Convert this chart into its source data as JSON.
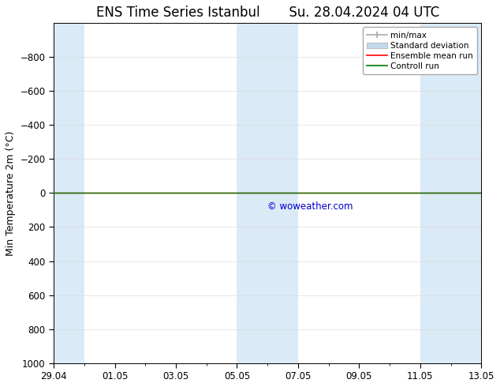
{
  "title": "ENS Time Series Istanbul",
  "title2": "Su. 28.04.2024 04 UTC",
  "ylabel": "Min Temperature 2m (°C)",
  "ylim_top": -1000,
  "ylim_bottom": 1000,
  "yticks": [
    -800,
    -600,
    -400,
    -200,
    0,
    200,
    400,
    600,
    800,
    1000
  ],
  "xtick_labels": [
    "29.04",
    "01.05",
    "03.05",
    "05.05",
    "07.05",
    "09.05",
    "11.05",
    "13.05"
  ],
  "xtick_positions": [
    0,
    2,
    4,
    6,
    8,
    10,
    12,
    14
  ],
  "background_color": "#ffffff",
  "plot_bg_color": "#ffffff",
  "shaded_columns": [
    {
      "start": 0,
      "end": 1
    },
    {
      "start": 6,
      "end": 7
    },
    {
      "start": 7,
      "end": 8
    },
    {
      "start": 12,
      "end": 13
    },
    {
      "start": 13,
      "end": 14
    }
  ],
  "shaded_color": "#daeaf7",
  "control_run_y": 0,
  "ensemble_mean_y": 0,
  "control_run_color": "#007700",
  "ensemble_mean_color": "#ff0000",
  "minmax_color": "#aaaaaa",
  "stddev_color": "#c5d9ea",
  "watermark": "© woweather.com",
  "watermark_color": "#0000cc",
  "legend_labels": [
    "min/max",
    "Standard deviation",
    "Ensemble mean run",
    "Controll run"
  ],
  "title_fontsize": 12,
  "axis_fontsize": 9,
  "tick_fontsize": 8.5
}
